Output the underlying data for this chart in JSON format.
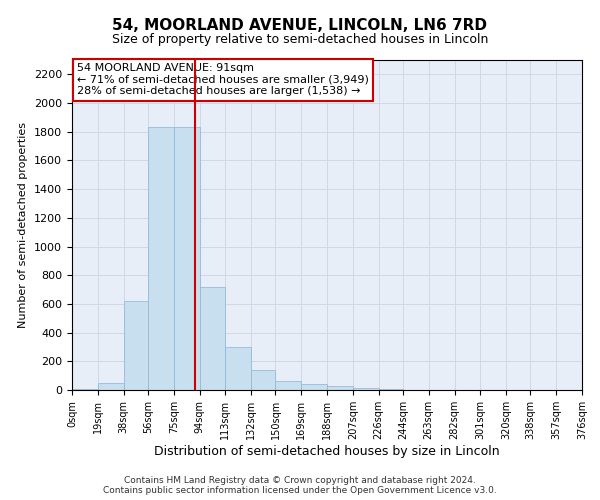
{
  "title": "54, MOORLAND AVENUE, LINCOLN, LN6 7RD",
  "subtitle": "Size of property relative to semi-detached houses in Lincoln",
  "xlabel": "Distribution of semi-detached houses by size in Lincoln",
  "ylabel": "Number of semi-detached properties",
  "footer_line1": "Contains HM Land Registry data © Crown copyright and database right 2024.",
  "footer_line2": "Contains public sector information licensed under the Open Government Licence v3.0.",
  "annotation_title": "54 MOORLAND AVENUE: 91sqm",
  "annotation_line1": "← 71% of semi-detached houses are smaller (3,949)",
  "annotation_line2": "28% of semi-detached houses are larger (1,538) →",
  "property_size": 91,
  "bin_edges": [
    0,
    19,
    38,
    56,
    75,
    94,
    113,
    132,
    150,
    169,
    188,
    207,
    226,
    244,
    263,
    282,
    301,
    320,
    338,
    357,
    376
  ],
  "bar_heights": [
    10,
    50,
    620,
    1830,
    1830,
    720,
    300,
    140,
    60,
    40,
    30,
    15,
    5,
    3,
    2,
    1,
    1,
    0,
    0,
    0
  ],
  "bar_color": "#c8dff0",
  "bar_edge_color": "#8ab4d4",
  "grid_color": "#d0d8e8",
  "background_color": "#e8eef8",
  "vline_color": "#cc0000",
  "annotation_box_color": "#cc0000",
  "ylim": [
    0,
    2300
  ],
  "yticks": [
    0,
    200,
    400,
    600,
    800,
    1000,
    1200,
    1400,
    1600,
    1800,
    2000,
    2200
  ]
}
